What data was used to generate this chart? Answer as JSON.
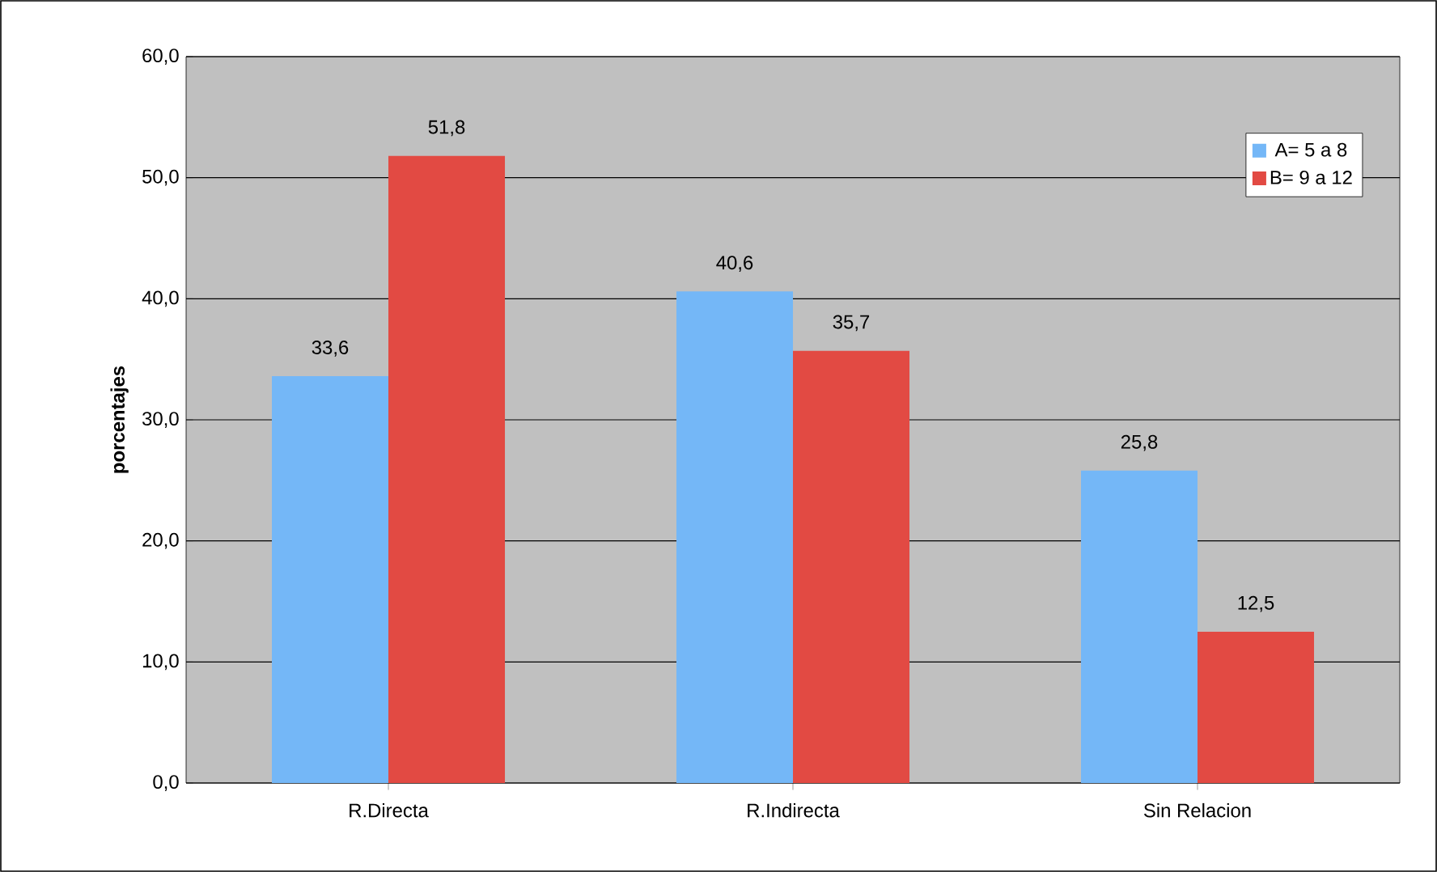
{
  "chart_data": {
    "type": "bar",
    "ylabel": "porcentajes",
    "categories": [
      "R.Directa",
      "R.Indirecta",
      "Sin Relacion"
    ],
    "series": [
      {
        "name": "A= 5 a 8",
        "color": "#74b7f7",
        "values": [
          33.6,
          40.6,
          25.8
        ],
        "value_labels": [
          "33,6",
          "40,6",
          "25,8"
        ]
      },
      {
        "name": "B= 9 a 12",
        "color": "#e24a43",
        "values": [
          51.8,
          35.7,
          12.5
        ],
        "value_labels": [
          "51,8",
          "35,7",
          "12,5"
        ]
      }
    ],
    "ylim": [
      0,
      60
    ],
    "yticks": [
      {
        "value": 0,
        "label": "0,0"
      },
      {
        "value": 10,
        "label": "10,0"
      },
      {
        "value": 20,
        "label": "20,0"
      },
      {
        "value": 30,
        "label": "30,0"
      },
      {
        "value": 40,
        "label": "40,0"
      },
      {
        "value": 50,
        "label": "50,0"
      },
      {
        "value": 60,
        "label": "60,0"
      }
    ],
    "grid": "y",
    "legend": "top right"
  }
}
